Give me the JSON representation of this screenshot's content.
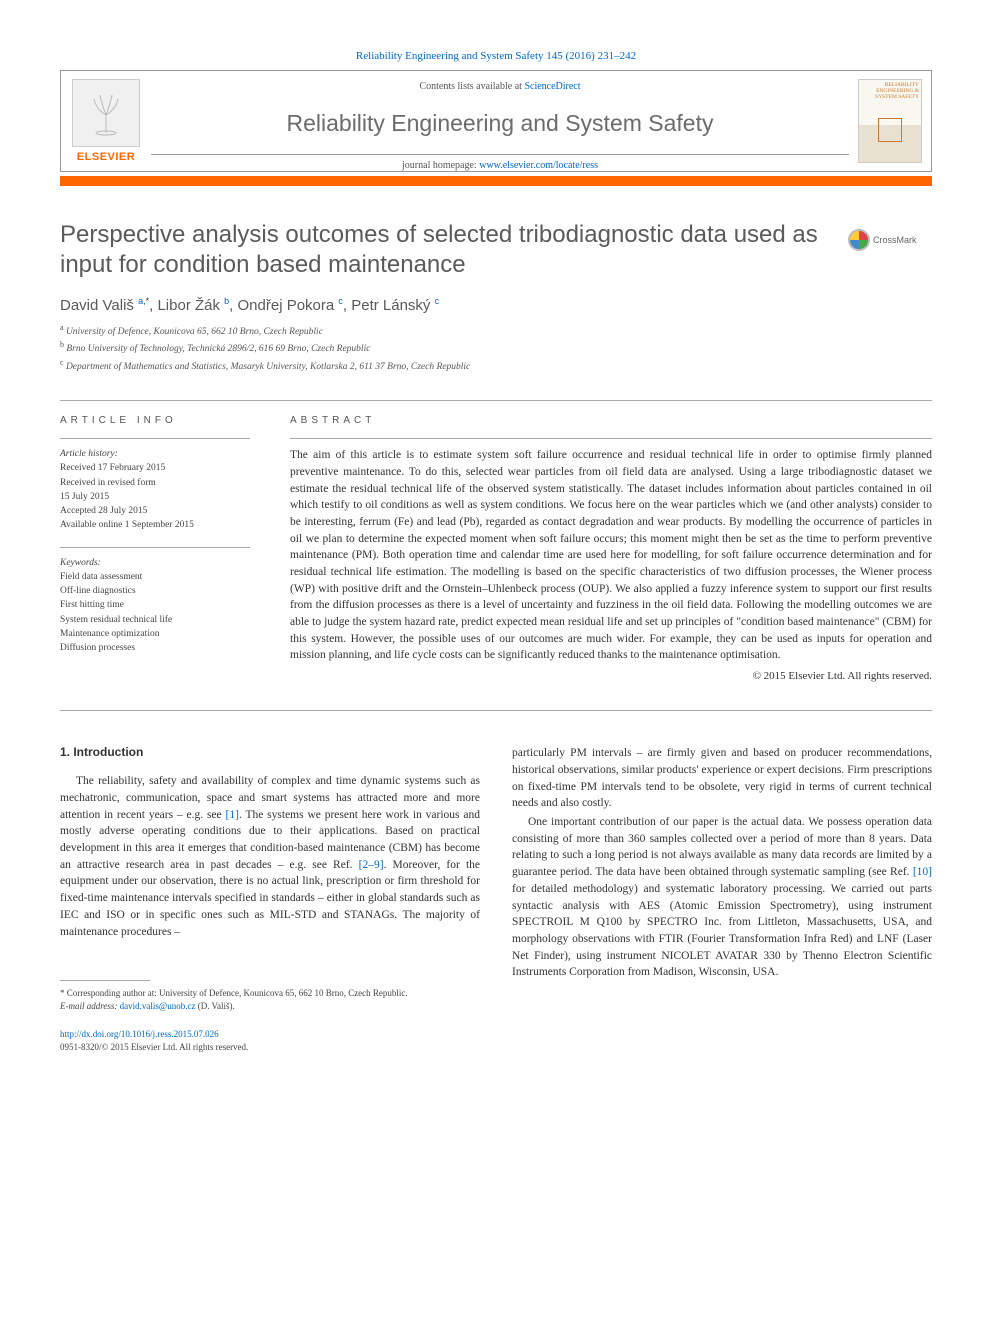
{
  "citation": "Reliability Engineering and System Safety 145 (2016) 231–242",
  "header": {
    "contents_prefix": "Contents lists available at ",
    "contents_link": "ScienceDirect",
    "journal_name": "Reliability Engineering and System Safety",
    "homepage_prefix": "journal homepage: ",
    "homepage_link": "www.elsevier.com/locate/ress",
    "elsevier": "ELSEVIER",
    "cover_text": "RELIABILITY ENGINEERING & SYSTEM SAFETY"
  },
  "crossmark_label": "CrossMark",
  "title": "Perspective analysis outcomes of selected tribodiagnostic data used as input for condition based maintenance",
  "authors_html": "David Vališ <sup>a,</sup><sup class='star'>*</sup>, Libor Žák <sup>b</sup>, Ondřej Pokora <sup>c</sup>, Petr Lánský <sup>c</sup>",
  "affiliations": [
    {
      "sup": "a",
      "text": "University of Defence, Kounicova 65, 662 10 Brno, Czech Republic"
    },
    {
      "sup": "b",
      "text": "Brno University of Technology, Technická 2896/2, 616 69 Brno, Czech Republic"
    },
    {
      "sup": "c",
      "text": "Department of Mathematics and Statistics, Masaryk University, Kotlarska 2, 611 37 Brno, Czech Republic"
    }
  ],
  "article_info_heading": "ARTICLE INFO",
  "abstract_heading": "ABSTRACT",
  "history_label": "Article history:",
  "history_lines": [
    "Received 17 February 2015",
    "Received in revised form",
    "15 July 2015",
    "Accepted 28 July 2015",
    "Available online 1 September 2015"
  ],
  "keywords_label": "Keywords:",
  "keywords": [
    "Field data assessment",
    "Off-line diagnostics",
    "First hitting time",
    "System residual technical life",
    "Maintenance optimization",
    "Diffusion processes"
  ],
  "abstract_text": "The aim of this article is to estimate system soft failure occurrence and residual technical life in order to optimise firmly planned preventive maintenance. To do this, selected wear particles from oil field data are analysed. Using a large tribodiagnostic dataset we estimate the residual technical life of the observed system statistically. The dataset includes information about particles contained in oil which testify to oil conditions as well as system conditions. We focus here on the wear particles which we (and other analysts) consider to be interesting, ferrum (Fe) and lead (Pb), regarded as contact degradation and wear products. By modelling the occurrence of particles in oil we plan to determine the expected moment when soft failure occurs; this moment might then be set as the time to perform preventive maintenance (PM). Both operation time and calendar time are used here for modelling, for soft failure occurrence determination and for residual technical life estimation. The modelling is based on the specific characteristics of two diffusion processes, the Wiener process (WP) with positive drift and the Ornstein–Uhlenbeck process (OUP). We also applied a fuzzy inference system to support our first results from the diffusion processes as there is a level of uncertainty and fuzziness in the oil field data. Following the modelling outcomes we are able to judge the system hazard rate, predict expected mean residual life and set up principles of \"condition based maintenance\" (CBM) for this system. However, the possible uses of our outcomes are much wider. For example, they can be used as inputs for operation and mission planning, and life cycle costs can be significantly reduced thanks to the maintenance optimisation.",
  "copyright": "© 2015 Elsevier Ltd. All rights reserved.",
  "intro_heading": "1.  Introduction",
  "body_col1_html": "The reliability, safety and availability of complex and time dynamic systems such as mechatronic, communication, space and smart systems has attracted more and more attention in recent years – e.g. see <span class='ref-link'>[1]</span>. The systems we present here work in various and mostly adverse operating conditions due to their applications. Based on practical development in this area it emerges that condition-based maintenance (CBM) has become an attractive research area in past decades – e.g. see Ref. <span class='ref-link'>[2–9]</span>. Moreover, for the equipment under our observation, there is no actual link, prescription or firm threshold for fixed-time maintenance intervals specified in standards – either in global standards such as IEC and ISO or in specific ones such as MIL-STD and STANAGs. The majority of maintenance procedures –",
  "body_col2_p1": "particularly PM intervals – are firmly given and based on producer recommendations, historical observations, similar products' experience or expert decisions. Firm prescriptions on fixed-time PM intervals tend to be obsolete, very rigid in terms of current technical needs and also costly.",
  "body_col2_p2_html": "One important contribution of our paper is the actual data. We possess operation data consisting of more than 360 samples collected over a period of more than 8 years. Data relating to such a long period is not always available as many data records are limited by a guarantee period. The data have been obtained through systematic sampling (see Ref. <span class='ref-link'>[10]</span> for detailed methodology) and systematic laboratory processing. We carried out parts syntactic analysis with AES (Atomic Emission Spectrometry), using instrument SPECTROIL M Q100 by SPECTRO Inc. from Littleton, Massachusetts, USA, and morphology observations with FTIR (Fourier Transformation Infra Red) and LNF (Laser Net Finder), using instrument NICOLET AVATAR 330 by Thenno Electron Scientific Instruments Corporation from Madison, Wisconsin, USA.",
  "footnote_corr": "* Corresponding author at: University of Defence, Kounicova 65, 662 10 Brno, Czech Republic.",
  "footnote_email_label": "E-mail address: ",
  "footnote_email": "david.valis@unob.cz",
  "footnote_email_suffix": " (D. Vališ).",
  "doi": "http://dx.doi.org/10.1016/j.ress.2015.07.026",
  "issn_line": "0951-8320/© 2015 Elsevier Ltd. All rights reserved."
}
